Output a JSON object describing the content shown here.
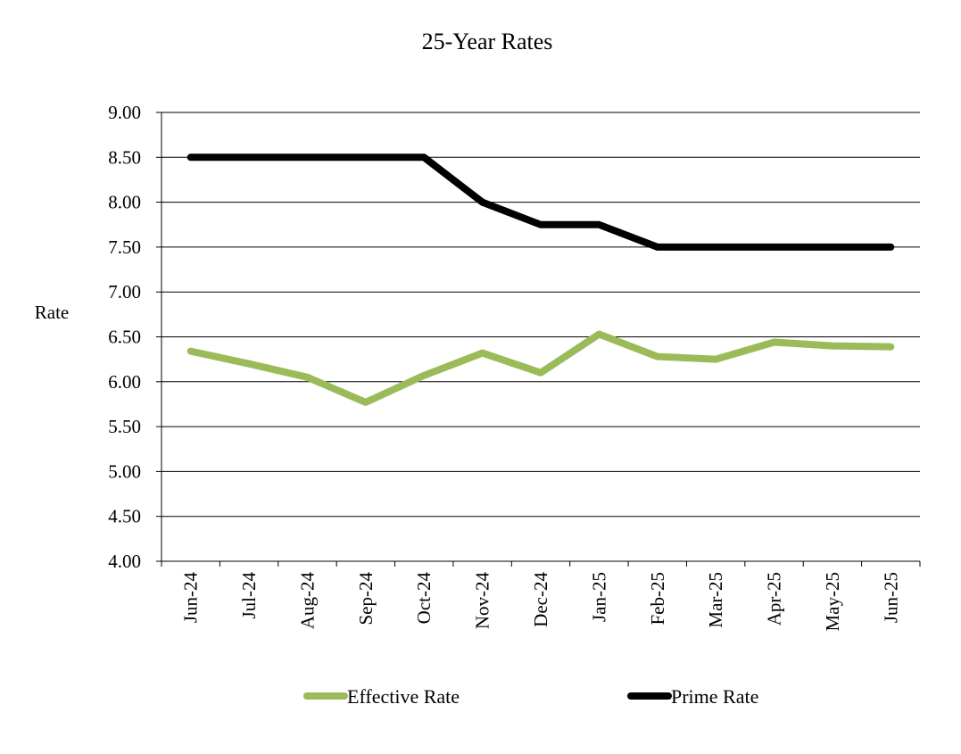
{
  "chart_data": {
    "type": "line",
    "title": "25-Year Rates",
    "xlabel": "",
    "ylabel": "Rate",
    "categories": [
      "Jun-24",
      "Jul-24",
      "Aug-24",
      "Sep-24",
      "Oct-24",
      "Nov-24",
      "Dec-24",
      "Jan-25",
      "Feb-25",
      "Mar-25",
      "Apr-25",
      "May-25",
      "Jun-25"
    ],
    "ylim": [
      4.0,
      9.0
    ],
    "yticks": [
      "4.00",
      "4.50",
      "5.00",
      "5.50",
      "6.00",
      "6.50",
      "7.00",
      "7.50",
      "8.00",
      "8.50",
      "9.00"
    ],
    "grid": true,
    "legend_position": "bottom",
    "series": [
      {
        "name": "Effective Rate",
        "color": "#9bbb59",
        "values": [
          6.34,
          6.2,
          6.05,
          5.77,
          6.07,
          6.32,
          6.1,
          6.53,
          6.28,
          6.25,
          6.44,
          6.4,
          6.39
        ]
      },
      {
        "name": "Prime Rate",
        "color": "#000000",
        "values": [
          8.5,
          8.5,
          8.5,
          8.5,
          8.5,
          8.0,
          7.75,
          7.75,
          7.5,
          7.5,
          7.5,
          7.5,
          7.5
        ]
      }
    ]
  }
}
